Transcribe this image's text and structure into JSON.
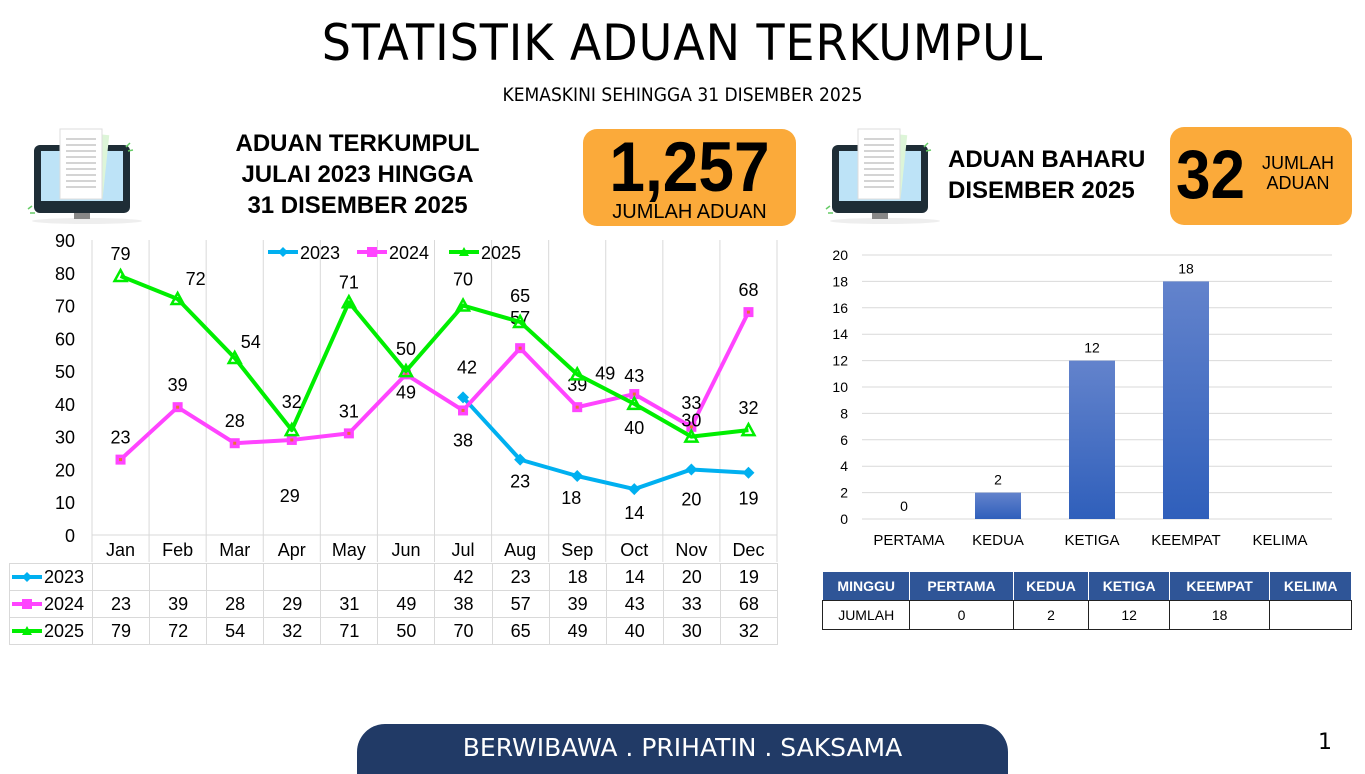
{
  "header": {
    "title": "STATISTIK ADUAN TERKUMPUL",
    "subtitle": "KEMASKINI SEHINGGA 31 DISEMBER 2025"
  },
  "left_panel": {
    "heading_lines": [
      "ADUAN TERKUMPUL",
      "JULAI 2023 HINGGA",
      "31 DISEMBER 2025"
    ],
    "total_value": "1,257",
    "total_label": "JUMLAH ADUAN",
    "icon": "computer-document-icon"
  },
  "right_panel": {
    "heading_lines": [
      "ADUAN BAHARU",
      "DISEMBER 2025"
    ],
    "total_value": "32",
    "total_label_lines": [
      "JUMLAH",
      "ADUAN"
    ],
    "icon": "computer-document-icon"
  },
  "colors": {
    "series_2023": "#00B0F0",
    "series_2024": "#FF44FF",
    "series_2025": "#00EE00",
    "bar": "#4472C4",
    "orange_box": "#FBAA3A",
    "table_header": "#2F5597",
    "footer": "#213A66"
  },
  "chart_data": [
    {
      "type": "line",
      "title": "",
      "categories": [
        "Jan",
        "Feb",
        "Mar",
        "Apr",
        "May",
        "Jun",
        "Jul",
        "Aug",
        "Sep",
        "Oct",
        "Nov",
        "Dec"
      ],
      "series": [
        {
          "name": "2023",
          "values": [
            null,
            null,
            null,
            null,
            null,
            null,
            42,
            23,
            18,
            14,
            20,
            19
          ],
          "marker": "diamond"
        },
        {
          "name": "2024",
          "values": [
            23,
            39,
            28,
            29,
            31,
            49,
            38,
            57,
            39,
            43,
            33,
            68
          ],
          "marker": "square"
        },
        {
          "name": "2025",
          "values": [
            79,
            72,
            54,
            32,
            71,
            50,
            70,
            65,
            49,
            40,
            30,
            32
          ],
          "marker": "triangle"
        }
      ],
      "y_ticks": [
        0,
        10,
        20,
        30,
        40,
        50,
        60,
        70,
        80,
        90
      ],
      "ylim": [
        0,
        90
      ],
      "xlabel": "",
      "ylabel": "",
      "grid": "vertical",
      "legend_position": "top",
      "data_table": true
    },
    {
      "type": "bar",
      "title": "",
      "categories": [
        "PERTAMA",
        "KEDUA",
        "KETIGA",
        "KEEMPAT",
        "KELIMA"
      ],
      "values": [
        0,
        2,
        12,
        18,
        null
      ],
      "y_ticks": [
        0,
        2,
        4,
        6,
        8,
        10,
        12,
        14,
        16,
        18,
        20
      ],
      "ylim": [
        0,
        20
      ],
      "xlabel": "",
      "ylabel": "",
      "grid": "horizontal"
    }
  ],
  "weekly_table": {
    "header": [
      "MINGGU",
      "PERTAMA",
      "KEDUA",
      "KETIGA",
      "KEEMPAT",
      "KELIMA"
    ],
    "row": [
      "JUMLAH",
      "0",
      "2",
      "12",
      "18",
      ""
    ]
  },
  "footer": {
    "motto": "BERWIBAWA . PRIHATIN . SAKSAMA",
    "page_number": "1"
  }
}
